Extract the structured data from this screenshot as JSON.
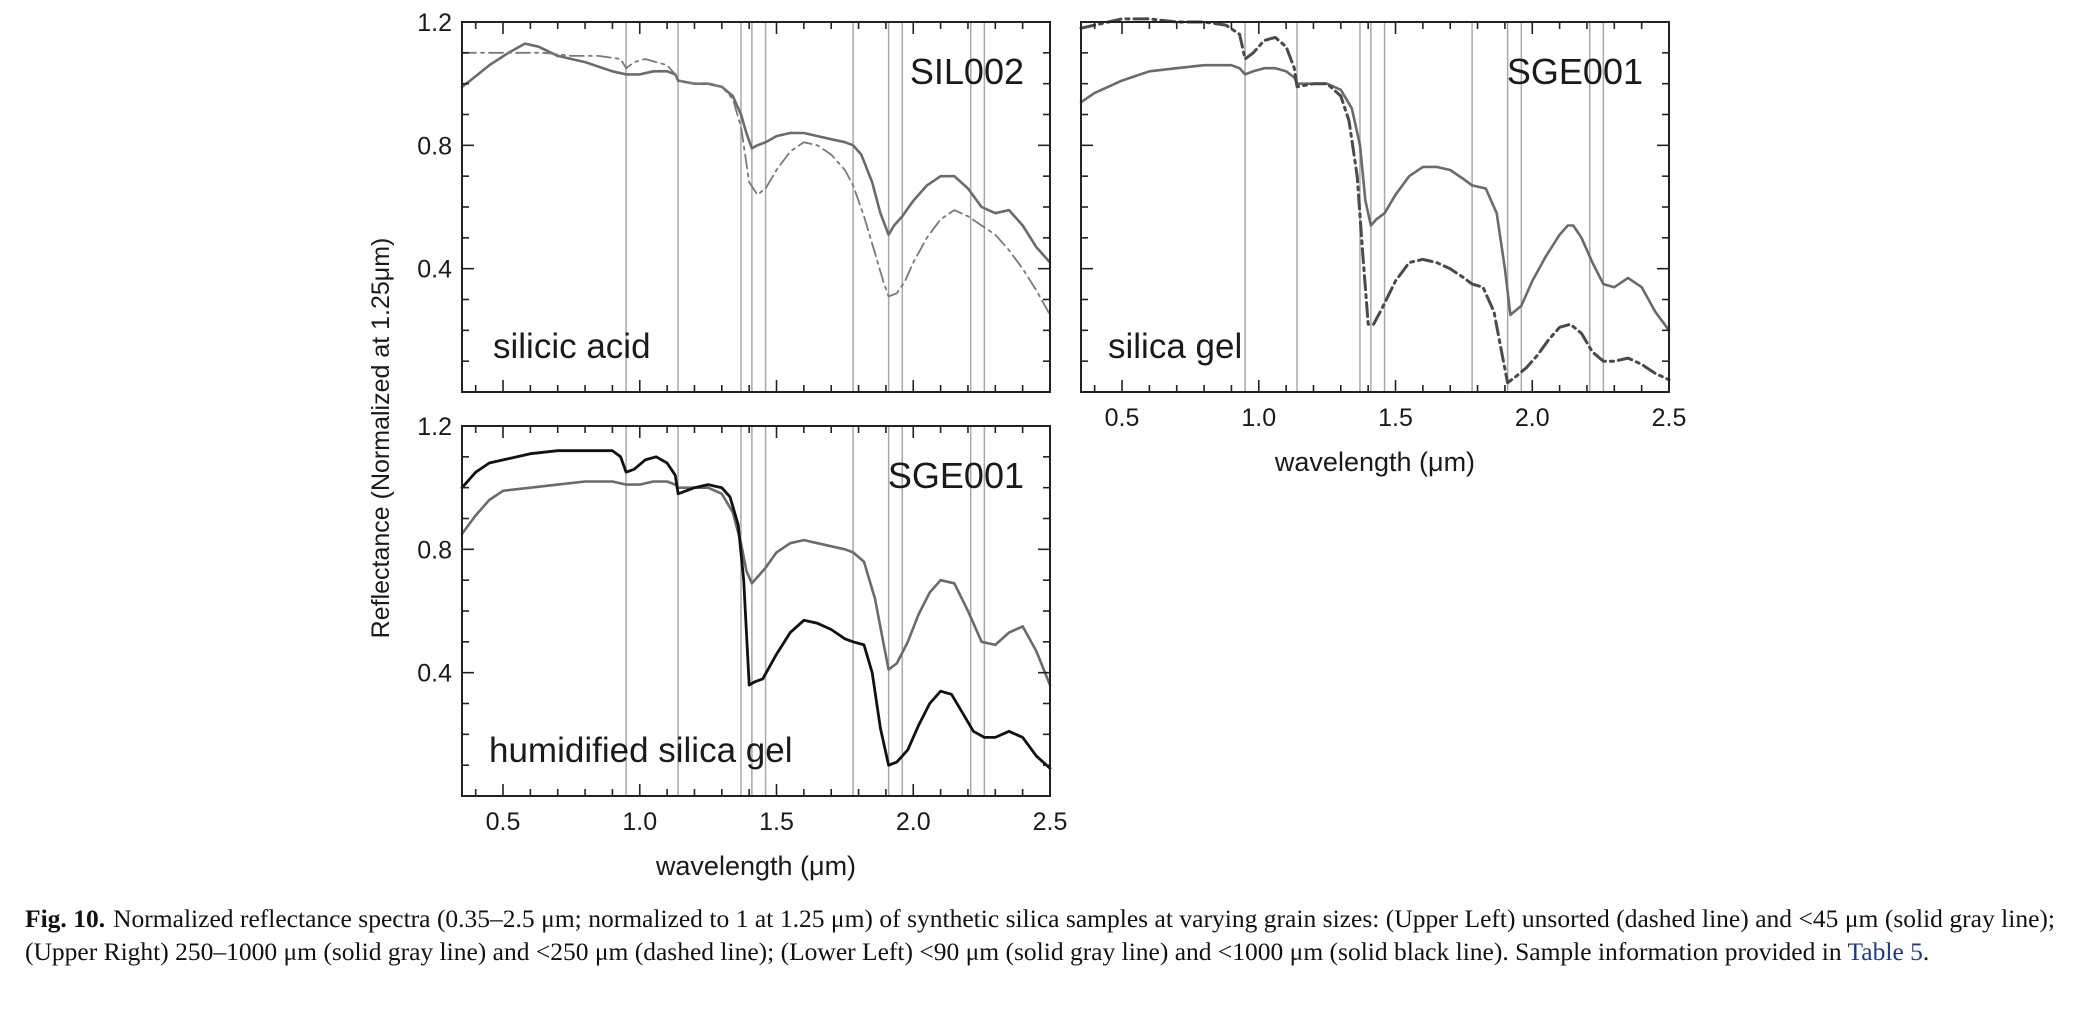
{
  "figure": {
    "ylabel": "Reflectance (Normalized at 1.25μm)",
    "caption_label": "Fig. 10.",
    "caption_text": "Normalized reflectance spectra (0.35–2.5 μm; normalized to 1 at 1.25 μm) of synthetic silica samples at varying grain sizes: (Upper Left) unsorted (dashed line) and <45 μm (solid gray line); (Upper Right) 250–1000 μm (solid gray line) and <250 μm (dashed line); (Lower Left) <90 μm (solid gray line) and <1000 μm (solid black line). Sample information provided in",
    "caption_link": "Table 5",
    "caption_end": "."
  },
  "chart_data": [
    {
      "type": "line",
      "id": "upper-left",
      "sample": "SIL002",
      "material": "silicic acid",
      "xlabel": "",
      "xlim": [
        0.35,
        2.5
      ],
      "ylim": [
        0.0,
        1.2
      ],
      "yticks": [
        "1.2",
        "0.8",
        "0.4"
      ],
      "xticks": [],
      "absorption_lines": [
        0.95,
        1.14,
        1.37,
        1.41,
        1.46,
        1.78,
        1.91,
        1.96,
        2.21,
        2.26
      ],
      "series": [
        {
          "style": "gray-solid",
          "x": [
            0.35,
            0.38,
            0.45,
            0.52,
            0.58,
            0.63,
            0.7,
            0.8,
            0.9,
            0.95,
            1.0,
            1.05,
            1.1,
            1.13,
            1.14,
            1.2,
            1.25,
            1.3,
            1.34,
            1.37,
            1.39,
            1.41,
            1.43,
            1.46,
            1.5,
            1.55,
            1.6,
            1.65,
            1.7,
            1.75,
            1.78,
            1.81,
            1.85,
            1.88,
            1.91,
            1.93,
            1.96,
            2.0,
            2.05,
            2.1,
            2.15,
            2.2,
            2.25,
            2.3,
            2.35,
            2.4,
            2.45,
            2.5
          ],
          "y": [
            0.99,
            1.01,
            1.06,
            1.1,
            1.13,
            1.12,
            1.09,
            1.07,
            1.04,
            1.03,
            1.03,
            1.04,
            1.04,
            1.03,
            1.01,
            1.0,
            1.0,
            0.99,
            0.96,
            0.9,
            0.84,
            0.79,
            0.8,
            0.81,
            0.83,
            0.84,
            0.84,
            0.83,
            0.82,
            0.81,
            0.8,
            0.77,
            0.68,
            0.58,
            0.51,
            0.54,
            0.57,
            0.62,
            0.67,
            0.7,
            0.7,
            0.66,
            0.6,
            0.58,
            0.59,
            0.54,
            0.47,
            0.42
          ]
        },
        {
          "style": "gray-dashdot",
          "x": [
            0.35,
            0.45,
            0.55,
            0.65,
            0.75,
            0.85,
            0.93,
            0.95,
            0.98,
            1.02,
            1.06,
            1.1,
            1.13,
            1.14,
            1.2,
            1.25,
            1.3,
            1.34,
            1.37,
            1.4,
            1.43,
            1.46,
            1.5,
            1.55,
            1.6,
            1.65,
            1.7,
            1.75,
            1.78,
            1.82,
            1.86,
            1.89,
            1.91,
            1.94,
            1.97,
            2.0,
            2.05,
            2.1,
            2.15,
            2.2,
            2.25,
            2.3,
            2.35,
            2.4,
            2.45,
            2.5
          ],
          "y": [
            1.1,
            1.1,
            1.1,
            1.1,
            1.09,
            1.09,
            1.08,
            1.05,
            1.07,
            1.08,
            1.07,
            1.06,
            1.03,
            1.01,
            1.0,
            1.0,
            0.99,
            0.95,
            0.86,
            0.68,
            0.64,
            0.66,
            0.72,
            0.78,
            0.81,
            0.8,
            0.77,
            0.72,
            0.67,
            0.57,
            0.45,
            0.36,
            0.31,
            0.32,
            0.36,
            0.42,
            0.5,
            0.56,
            0.59,
            0.57,
            0.54,
            0.51,
            0.46,
            0.4,
            0.33,
            0.25
          ]
        }
      ]
    },
    {
      "type": "line",
      "id": "upper-right",
      "sample": "SGE001",
      "material": "silica gel",
      "xlabel": "wavelength (μm)",
      "xlim": [
        0.35,
        2.5
      ],
      "ylim": [
        0.0,
        1.2
      ],
      "yticks": [],
      "xticks": [
        "0.5",
        "1.0",
        "1.5",
        "2.0",
        "2.5"
      ],
      "absorption_lines": [
        0.95,
        1.14,
        1.37,
        1.41,
        1.46,
        1.78,
        1.91,
        1.96,
        2.21,
        2.26
      ],
      "series": [
        {
          "style": "gray-solid",
          "x": [
            0.35,
            0.4,
            0.5,
            0.6,
            0.7,
            0.8,
            0.9,
            0.93,
            0.95,
            0.98,
            1.02,
            1.06,
            1.1,
            1.13,
            1.14,
            1.2,
            1.25,
            1.3,
            1.34,
            1.37,
            1.39,
            1.41,
            1.43,
            1.46,
            1.5,
            1.55,
            1.6,
            1.65,
            1.7,
            1.75,
            1.78,
            1.83,
            1.87,
            1.9,
            1.92,
            1.96,
            2.0,
            2.05,
            2.1,
            2.13,
            2.15,
            2.18,
            2.22,
            2.26,
            2.3,
            2.35,
            2.4,
            2.45,
            2.5
          ],
          "y": [
            0.94,
            0.97,
            1.01,
            1.04,
            1.05,
            1.06,
            1.06,
            1.05,
            1.03,
            1.04,
            1.05,
            1.05,
            1.04,
            1.02,
            1.0,
            1.0,
            1.0,
            0.98,
            0.92,
            0.8,
            0.62,
            0.54,
            0.56,
            0.58,
            0.64,
            0.7,
            0.73,
            0.73,
            0.72,
            0.69,
            0.67,
            0.66,
            0.58,
            0.4,
            0.25,
            0.28,
            0.36,
            0.44,
            0.51,
            0.54,
            0.54,
            0.5,
            0.42,
            0.35,
            0.34,
            0.37,
            0.34,
            0.26,
            0.2
          ]
        },
        {
          "style": "dark-dashdot",
          "x": [
            0.35,
            0.4,
            0.5,
            0.6,
            0.7,
            0.8,
            0.88,
            0.93,
            0.95,
            0.98,
            1.02,
            1.06,
            1.1,
            1.13,
            1.14,
            1.2,
            1.25,
            1.3,
            1.33,
            1.36,
            1.38,
            1.4,
            1.42,
            1.45,
            1.5,
            1.55,
            1.6,
            1.65,
            1.7,
            1.75,
            1.78,
            1.82,
            1.86,
            1.89,
            1.91,
            1.94,
            1.98,
            2.02,
            2.06,
            2.1,
            2.14,
            2.18,
            2.22,
            2.26,
            2.3,
            2.35,
            2.4,
            2.45,
            2.5
          ],
          "y": [
            1.18,
            1.19,
            1.21,
            1.21,
            1.2,
            1.2,
            1.19,
            1.16,
            1.08,
            1.1,
            1.14,
            1.15,
            1.12,
            1.05,
            0.99,
            1.0,
            1.0,
            0.96,
            0.88,
            0.7,
            0.45,
            0.22,
            0.22,
            0.27,
            0.36,
            0.42,
            0.43,
            0.42,
            0.4,
            0.37,
            0.35,
            0.34,
            0.26,
            0.12,
            0.03,
            0.05,
            0.08,
            0.12,
            0.17,
            0.21,
            0.22,
            0.19,
            0.13,
            0.1,
            0.1,
            0.11,
            0.09,
            0.06,
            0.04
          ]
        }
      ]
    },
    {
      "type": "line",
      "id": "lower-left",
      "sample": "SGE001",
      "material": "humidified silica gel",
      "xlabel": "wavelength (μm)",
      "xlim": [
        0.35,
        2.5
      ],
      "ylim": [
        0.0,
        1.2
      ],
      "yticks": [
        "1.2",
        "0.8",
        "0.4"
      ],
      "xticks": [
        "0.5",
        "1.0",
        "1.5",
        "2.0",
        "2.5"
      ],
      "absorption_lines": [
        0.95,
        1.14,
        1.37,
        1.41,
        1.46,
        1.78,
        1.91,
        1.96,
        2.21,
        2.26
      ],
      "series": [
        {
          "style": "gray-solid",
          "x": [
            0.35,
            0.4,
            0.45,
            0.5,
            0.6,
            0.7,
            0.8,
            0.9,
            0.95,
            1.0,
            1.05,
            1.1,
            1.13,
            1.14,
            1.2,
            1.25,
            1.3,
            1.34,
            1.37,
            1.39,
            1.41,
            1.43,
            1.46,
            1.5,
            1.55,
            1.6,
            1.65,
            1.7,
            1.75,
            1.78,
            1.82,
            1.86,
            1.89,
            1.91,
            1.94,
            1.98,
            2.02,
            2.06,
            2.1,
            2.15,
            2.2,
            2.25,
            2.3,
            2.35,
            2.4,
            2.45,
            2.5
          ],
          "y": [
            0.85,
            0.91,
            0.96,
            0.99,
            1.0,
            1.01,
            1.02,
            1.02,
            1.01,
            1.01,
            1.02,
            1.02,
            1.01,
            1.0,
            1.0,
            1.0,
            0.98,
            0.92,
            0.82,
            0.73,
            0.69,
            0.71,
            0.74,
            0.79,
            0.82,
            0.83,
            0.82,
            0.81,
            0.8,
            0.79,
            0.76,
            0.64,
            0.5,
            0.41,
            0.43,
            0.5,
            0.59,
            0.66,
            0.7,
            0.69,
            0.6,
            0.5,
            0.49,
            0.53,
            0.55,
            0.47,
            0.36
          ]
        },
        {
          "style": "black-solid",
          "x": [
            0.35,
            0.4,
            0.45,
            0.5,
            0.6,
            0.7,
            0.8,
            0.9,
            0.93,
            0.95,
            0.98,
            1.02,
            1.06,
            1.1,
            1.13,
            1.14,
            1.2,
            1.25,
            1.3,
            1.33,
            1.36,
            1.38,
            1.4,
            1.42,
            1.45,
            1.5,
            1.55,
            1.6,
            1.65,
            1.7,
            1.75,
            1.78,
            1.82,
            1.85,
            1.88,
            1.91,
            1.94,
            1.98,
            2.02,
            2.06,
            2.1,
            2.14,
            2.18,
            2.22,
            2.26,
            2.3,
            2.35,
            2.4,
            2.45,
            2.5
          ],
          "y": [
            1.0,
            1.05,
            1.08,
            1.09,
            1.11,
            1.12,
            1.12,
            1.12,
            1.1,
            1.05,
            1.06,
            1.09,
            1.1,
            1.08,
            1.04,
            0.98,
            1.0,
            1.01,
            1.0,
            0.97,
            0.88,
            0.7,
            0.36,
            0.37,
            0.38,
            0.46,
            0.53,
            0.57,
            0.56,
            0.54,
            0.51,
            0.5,
            0.49,
            0.4,
            0.22,
            0.1,
            0.11,
            0.15,
            0.23,
            0.3,
            0.34,
            0.33,
            0.27,
            0.21,
            0.19,
            0.19,
            0.21,
            0.19,
            0.13,
            0.09
          ]
        }
      ]
    }
  ]
}
